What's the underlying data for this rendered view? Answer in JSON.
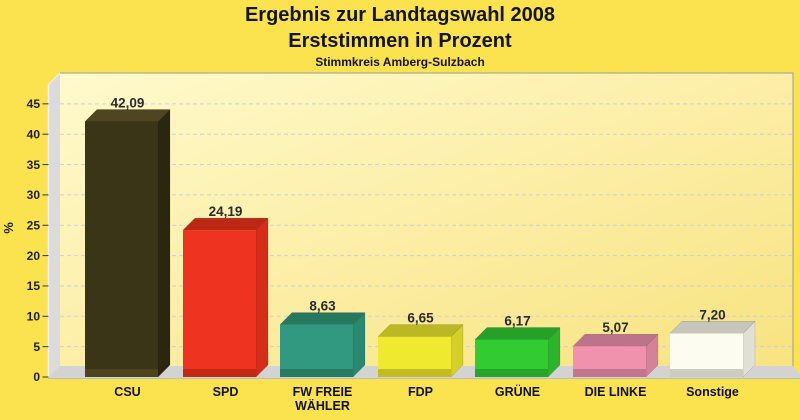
{
  "header": {
    "title_line1": "Ergebnis zur Landtagswahl 2008",
    "title_line2": "Erststimmen in Prozent",
    "subtitle": "Stimmkreis Amberg-Sulzbach"
  },
  "chart_data": {
    "type": "bar",
    "style": "3d-vertical-bars",
    "title": "Ergebnis zur Landtagswahl 2008",
    "subtitle2": "Erststimmen in Prozent",
    "subtitle3": "Stimmkreis Amberg-Sulzbach",
    "xlabel": "",
    "ylabel": "%",
    "ylim": [
      0,
      45
    ],
    "yticks": [
      0,
      5,
      10,
      15,
      20,
      25,
      30,
      35,
      40,
      45
    ],
    "grid": "horizontal-dashed",
    "legend": "none",
    "categories": [
      "CSU",
      "SPD",
      "FW FREIE WÄHLER",
      "FDP",
      "GRÜNE",
      "DIE LINKE",
      "Sonstige"
    ],
    "categories_wrapped": [
      [
        "CSU"
      ],
      [
        "SPD"
      ],
      [
        "FW FREIE",
        "WÄHLER"
      ],
      [
        "FDP"
      ],
      [
        "GRÜNE"
      ],
      [
        "DIE LINKE"
      ],
      [
        "Sonstige"
      ]
    ],
    "values": [
      42.09,
      24.19,
      8.63,
      6.65,
      6.17,
      5.07,
      7.2
    ],
    "value_labels": [
      "42,09",
      "24,19",
      "8,63",
      "6,65",
      "6,17",
      "5,07",
      "7,20"
    ],
    "bar_colors": [
      {
        "front": "#3B3517",
        "top": "#4E4620",
        "side": "#2B2610"
      },
      {
        "front": "#EE3320",
        "top": "#BC2814",
        "side": "#D52D1A"
      },
      {
        "front": "#31997F",
        "top": "#26785F",
        "side": "#2B8870"
      },
      {
        "front": "#EFE92F",
        "top": "#BCB724",
        "side": "#D5CF29"
      },
      {
        "front": "#32CB32",
        "top": "#27A027",
        "side": "#2CB52C"
      },
      {
        "front": "#F092AE",
        "top": "#BD7389",
        "side": "#D5819A"
      },
      {
        "front": "#FCFCF0",
        "top": "#C6C6BC",
        "side": "#E0E0D5"
      }
    ],
    "colors": {
      "background": "#FBE350",
      "plot_gradient_start": "#FFFACD",
      "plot_gradient_end": "#F8E380",
      "wall": "#DBDBDB",
      "wall_highlight": "#F0F0F0",
      "floor": "#D3D3D3",
      "floor_edge": "#BDBDBD",
      "grid": "#CFCFCF",
      "text": "#1F1F1F",
      "value_label_text": "#2A2A2A",
      "plot_border": "#9C9C9C"
    }
  }
}
